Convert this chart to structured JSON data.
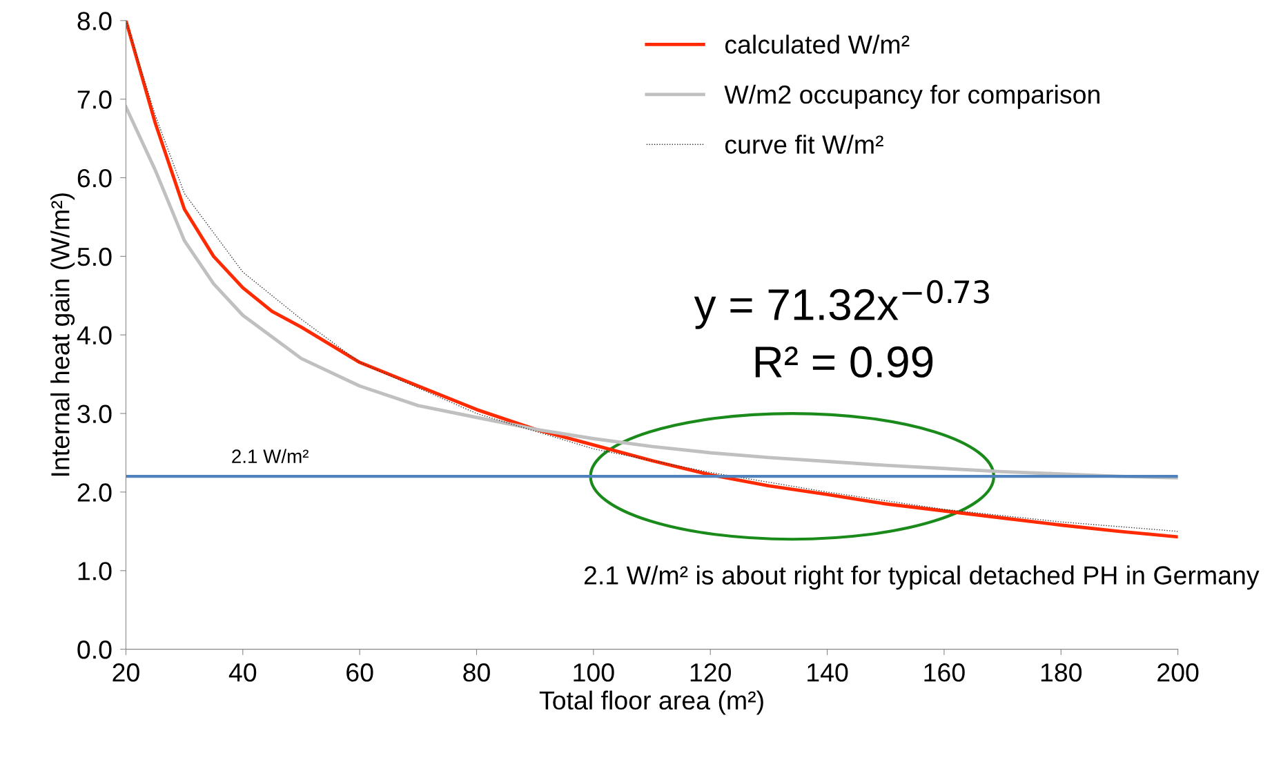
{
  "chart_data": {
    "type": "line",
    "xlabel": "Total floor area (m²)",
    "ylabel": "Internal heat gain (W/m²)",
    "xlim": [
      20,
      200
    ],
    "xticks": [
      20,
      40,
      60,
      80,
      100,
      120,
      140,
      160,
      180,
      200
    ],
    "ylim": [
      0,
      8
    ],
    "yticks": [
      {
        "value": 0,
        "label": "0.0"
      },
      {
        "value": 1,
        "label": "1.0"
      },
      {
        "value": 2,
        "label": "2.0"
      },
      {
        "value": 3,
        "label": "3.0"
      },
      {
        "value": 4,
        "label": "4.0"
      },
      {
        "value": 5,
        "label": "5.0"
      },
      {
        "value": 6,
        "label": "6.0"
      },
      {
        "value": 7,
        "label": "7.0"
      },
      {
        "value": 8,
        "label": "8.0"
      }
    ],
    "grid": false,
    "legend": "top right",
    "marker": "none",
    "series": [
      {
        "name": "calculated W/m²",
        "color": "#ff2a00",
        "line_style": "solid",
        "x": [
          20,
          25,
          30,
          35,
          40,
          45,
          50,
          60,
          70,
          80,
          90,
          100,
          110,
          120,
          130,
          140,
          150,
          160,
          170,
          180,
          190,
          200
        ],
        "values": [
          8.0,
          6.7,
          5.6,
          5.0,
          4.6,
          4.3,
          4.1,
          3.65,
          3.35,
          3.05,
          2.8,
          2.6,
          2.4,
          2.22,
          2.08,
          1.97,
          1.85,
          1.76,
          1.67,
          1.58,
          1.5,
          1.43
        ]
      },
      {
        "name": "W/m2 occupancy for comparison",
        "color": "#c0c0c0",
        "line_style": "solid",
        "x": [
          20,
          25,
          30,
          35,
          40,
          50,
          60,
          70,
          80,
          90,
          100,
          110,
          120,
          130,
          140,
          150,
          160,
          170,
          180,
          190,
          200
        ],
        "values": [
          6.9,
          6.1,
          5.2,
          4.65,
          4.25,
          3.7,
          3.35,
          3.1,
          2.95,
          2.8,
          2.68,
          2.58,
          2.5,
          2.44,
          2.39,
          2.34,
          2.3,
          2.26,
          2.23,
          2.2,
          2.18
        ]
      },
      {
        "name": "curve fit W/m²",
        "color": "#333333",
        "line_style": "dotted",
        "x": [
          20,
          25,
          30,
          40,
          50,
          60,
          80,
          100,
          120,
          140,
          160,
          180,
          200
        ],
        "values": [
          8.0,
          6.8,
          5.8,
          4.8,
          4.2,
          3.65,
          3.0,
          2.55,
          2.25,
          2.0,
          1.78,
          1.62,
          1.5
        ]
      }
    ],
    "ref_lines": [
      {
        "axis": "y",
        "value": 2.2,
        "label": "2.1 W/m²",
        "color": "#4f81bd",
        "line_style": "solid"
      }
    ],
    "annotations": [
      "y = 71.32x$^{−0.73}$",
      "R² = 0.99",
      "2.1 W/m² is about right for typical detached PH in Germany"
    ]
  }
}
